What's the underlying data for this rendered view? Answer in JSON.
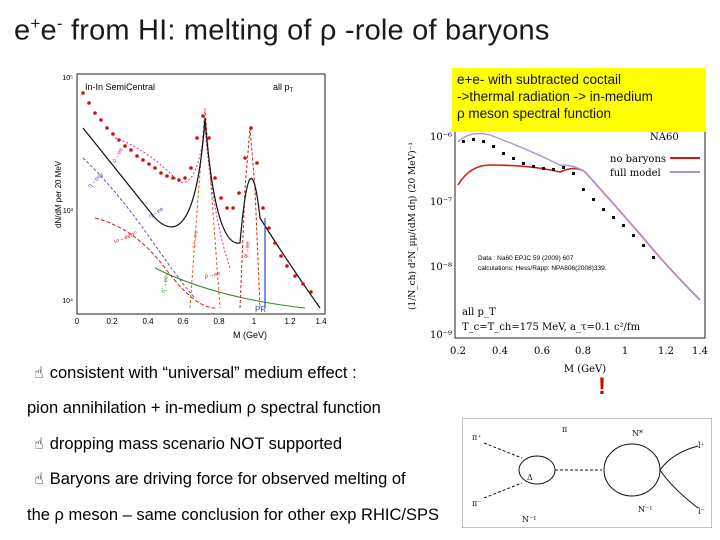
{
  "title": {
    "part1": "e",
    "sup1": "+",
    "part2": "e",
    "sup2": "-",
    "rest": " from HI: melting of ρ -role of baryons"
  },
  "note": {
    "line1": "e+e- with subtracted coctail",
    "line2": "->thermal radiation -> in-medium",
    "line3": "ρ meson spectral function"
  },
  "bullets": {
    "symbol": "☝",
    "line1": "consistent with “universal” medium effect :",
    "line2": "pion annihilation + in-medium ρ spectral function",
    "line3": "dropping mass scenario NOT supported",
    "line4": "Baryons are driving force for observed melting of",
    "line5": "the ρ meson – same conclusion for other exp RHIC/SPS"
  },
  "exclaim": "!",
  "left_plot": {
    "panel_title": "In-In SemiCentral",
    "pt_label": "all p",
    "pt_sub": "T",
    "ylabel": "dN/dM per 20 MeV",
    "xlabel": "M (GeV)",
    "xticks": [
      "0",
      "0.2",
      "0.4",
      "0.6",
      "0.8",
      "1",
      "1.2",
      "1.4"
    ],
    "yticks": [
      "10³",
      "10⁴"
    ],
    "ylabel_top": "10⁵",
    "curve_labels": [
      "ρ→ee",
      "η→eeγ",
      "ω→eeπ⁰",
      "ω→ee",
      "φ→ee",
      "η'→eeγ",
      "η→ee",
      "ρ→ee"
    ],
    "pr_label": "PR",
    "colors": {
      "data": "#d01010",
      "curve_red": "#cc2222",
      "curve_orange": "#e06020",
      "curve_magenta": "#cc33aa",
      "curve_purple": "#7744aa",
      "curve_black": "#111111",
      "curve_blue": "#3344cc",
      "curve_green": "#338833"
    }
  },
  "right_plot": {
    "experiment": "NA60",
    "legend": [
      {
        "label": "no baryons",
        "color": "#d01818"
      },
      {
        "label": "full model",
        "color": "#b090d0"
      }
    ],
    "ylabel": "(1/N_ch) d²N_μμ/(dM dη) (20 MeV)⁻¹",
    "xlabel": "M (GeV)",
    "yticks": [
      "10⁻⁶",
      "10⁻⁷",
      "10⁻⁸",
      "10⁻⁹"
    ],
    "xticks": [
      "0.2",
      "0.4",
      "0.6",
      "0.8",
      "1",
      "1.2",
      "1.4"
    ],
    "data_ref": "Data : Na60 EPJC 59 (2009) 607",
    "calc_ref": "calculations: Hess/Rapp: NPA806(2008)339.",
    "annotation_line1": "all p_T",
    "annotation_line2": "T_c=T_ch=175 MeV, a_τ=0.1 c²/fm"
  },
  "diagram": {
    "labels": [
      "π⁺",
      "π",
      "N*",
      "l⁺",
      "π⁻",
      "Δ",
      "N⁻¹",
      "N⁻¹",
      "l⁻"
    ]
  }
}
